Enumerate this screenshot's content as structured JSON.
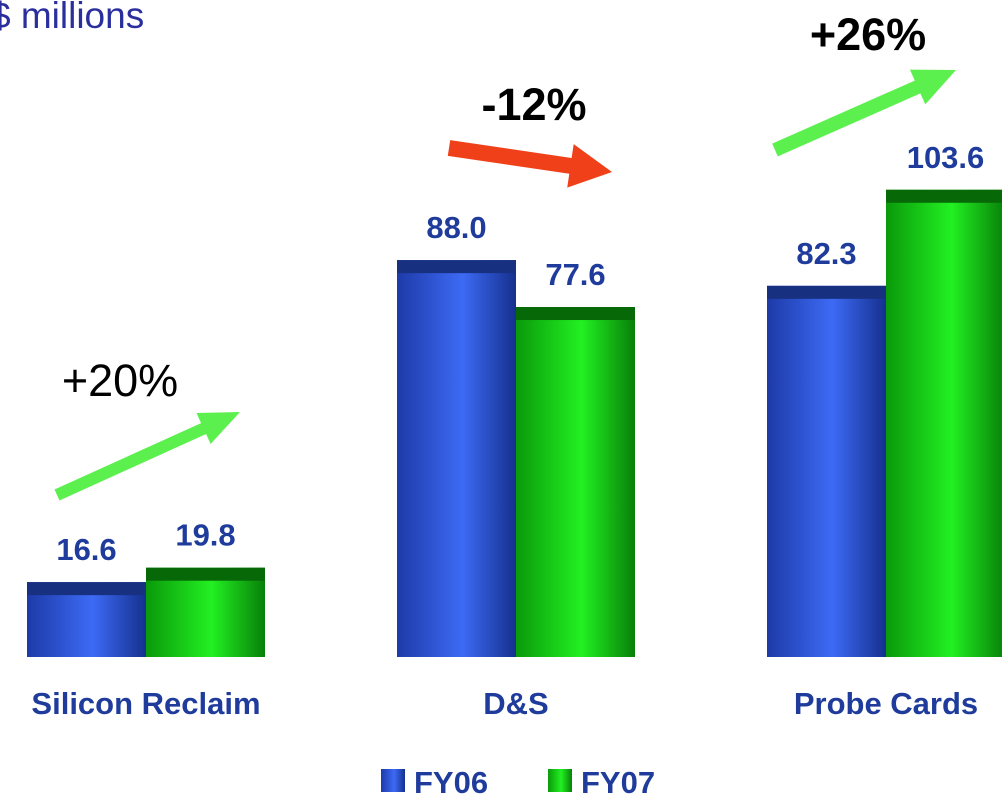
{
  "units_label": "$ millions",
  "chart_data": {
    "type": "bar",
    "categories": [
      "Silicon Reclaim",
      "D&S",
      "Probe Cards"
    ],
    "series": [
      {
        "name": "FY06",
        "values": [
          16.6,
          88.0,
          82.3
        ],
        "value_labels": [
          "16.6",
          "88.0",
          "82.3"
        ]
      },
      {
        "name": "FY07",
        "values": [
          19.8,
          77.6,
          103.6
        ],
        "value_labels": [
          "19.8",
          "77.6",
          "103.6"
        ]
      }
    ],
    "changes": [
      {
        "label": "+20%",
        "direction": "up",
        "color": "#5cf04f"
      },
      {
        "label": "-12%",
        "direction": "down",
        "color": "#f0401a"
      },
      {
        "label": "+26%",
        "direction": "up",
        "color": "#5cf04f"
      }
    ],
    "colors": {
      "FY06": "#2f5de0",
      "FY07": "#14cc14"
    },
    "legend_placement": "bottom",
    "grid": false,
    "ylim": [
      0,
      110
    ]
  }
}
